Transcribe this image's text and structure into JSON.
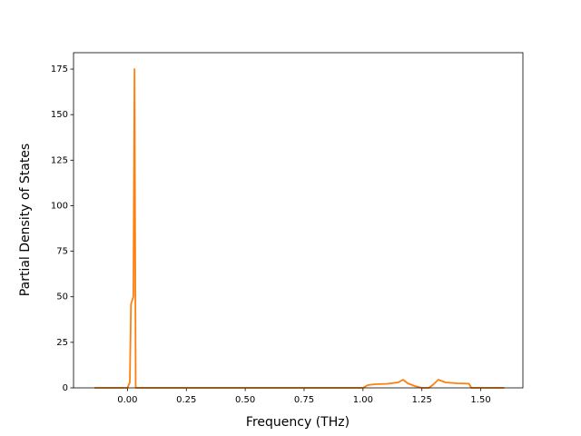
{
  "chart_data": {
    "type": "line",
    "xlabel": "Frequency (THz)",
    "ylabel": "Partial Density of States",
    "x": [
      -0.14,
      0.0,
      0.01,
      0.015,
      0.025,
      0.03,
      0.035,
      0.04,
      1.0,
      1.02,
      1.05,
      1.1,
      1.15,
      1.17,
      1.19,
      1.22,
      1.25,
      1.28,
      1.3,
      1.32,
      1.35,
      1.4,
      1.45,
      1.46,
      1.6
    ],
    "values": [
      0,
      0,
      3,
      46,
      50,
      175,
      0,
      0,
      0,
      1.5,
      2,
      2.2,
      3,
      4.5,
      2.5,
      1,
      0,
      0,
      2,
      4.5,
      3,
      2.5,
      2.3,
      0,
      0
    ],
    "color": "#ff7f0e",
    "xlim": [
      -0.229,
      1.679
    ],
    "ylim": [
      0,
      184
    ],
    "xticks": [
      {
        "value": 0,
        "label": "0.00"
      },
      {
        "value": 0.25,
        "label": "0.25"
      },
      {
        "value": 0.5,
        "label": "0.50"
      },
      {
        "value": 0.75,
        "label": "0.75"
      },
      {
        "value": 1,
        "label": "1.00"
      },
      {
        "value": 1.25,
        "label": "1.25"
      },
      {
        "value": 1.5,
        "label": "1.50"
      }
    ],
    "yticks": [
      0,
      25,
      50,
      75,
      100,
      125,
      150,
      175
    ],
    "grid": false
  }
}
